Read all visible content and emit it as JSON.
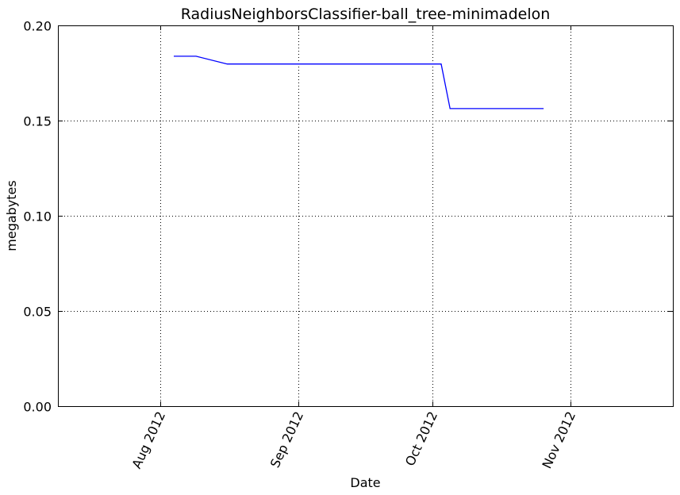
{
  "chart_data": {
    "type": "line",
    "title": "RadiusNeighborsClassifier-ball_tree-minimadelon",
    "xlabel": "Date",
    "ylabel": "megabytes",
    "x_axis_kind": "date",
    "xlim": [
      "2012-07-09",
      "2012-11-24"
    ],
    "ylim": [
      0.0,
      0.2
    ],
    "grid": true,
    "x_ticks": [
      {
        "date": "2012-08-01",
        "label": "Aug 2012"
      },
      {
        "date": "2012-09-01",
        "label": "Sep 2012"
      },
      {
        "date": "2012-10-01",
        "label": "Oct 2012"
      },
      {
        "date": "2012-11-01",
        "label": "Nov 2012"
      }
    ],
    "y_ticks": [
      {
        "value": 0.0,
        "label": "0.00"
      },
      {
        "value": 0.05,
        "label": "0.05"
      },
      {
        "value": 0.1,
        "label": "0.10"
      },
      {
        "value": 0.15,
        "label": "0.15"
      },
      {
        "value": 0.2,
        "label": "0.20"
      }
    ],
    "series": [
      {
        "color": "#0000ff",
        "points": [
          {
            "x": "2012-08-04",
            "y": 0.1838
          },
          {
            "x": "2012-08-09",
            "y": 0.1838
          },
          {
            "x": "2012-08-16",
            "y": 0.1797
          },
          {
            "x": "2012-10-03",
            "y": 0.1797
          },
          {
            "x": "2012-10-05",
            "y": 0.1563
          },
          {
            "x": "2012-10-26",
            "y": 0.1563
          }
        ]
      }
    ]
  }
}
